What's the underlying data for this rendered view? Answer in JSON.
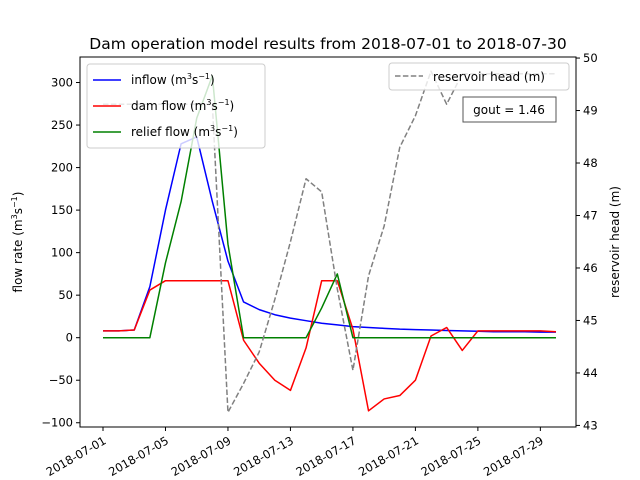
{
  "chart_data": {
    "type": "line",
    "title": "Dam operation model results from 2018-07-01 to 2018-07-30",
    "x": [
      "2018-07-01",
      "2018-07-02",
      "2018-07-03",
      "2018-07-04",
      "2018-07-05",
      "2018-07-06",
      "2018-07-07",
      "2018-07-08",
      "2018-07-09",
      "2018-07-10",
      "2018-07-11",
      "2018-07-12",
      "2018-07-13",
      "2018-07-14",
      "2018-07-15",
      "2018-07-16",
      "2018-07-17",
      "2018-07-18",
      "2018-07-19",
      "2018-07-20",
      "2018-07-21",
      "2018-07-22",
      "2018-07-23",
      "2018-07-24",
      "2018-07-25",
      "2018-07-26",
      "2018-07-27",
      "2018-07-28",
      "2018-07-29",
      "2018-07-30"
    ],
    "x_ticks": [
      "2018-07-01",
      "2018-07-05",
      "2018-07-09",
      "2018-07-13",
      "2018-07-17",
      "2018-07-21",
      "2018-07-25",
      "2018-07-29"
    ],
    "left_axis": {
      "label_main": "flow rate (m",
      "label_sup1": "3",
      "label_mid": "s",
      "label_sup2": "−1",
      "label_end": ")",
      "ylim": [
        -105,
        330
      ],
      "ticks": [
        -100,
        -50,
        0,
        50,
        100,
        150,
        200,
        250,
        300
      ],
      "tick_labels": [
        "−100",
        "−50",
        "0",
        "50",
        "100",
        "150",
        "200",
        "250",
        "300"
      ]
    },
    "right_axis": {
      "label": "reservoir head (m)",
      "ylim": [
        42.97,
        50.02
      ],
      "ticks": [
        43,
        44,
        45,
        46,
        47,
        48,
        49,
        50
      ],
      "tick_labels": [
        "43",
        "44",
        "45",
        "46",
        "47",
        "48",
        "49",
        "50"
      ]
    },
    "series": [
      {
        "name_main": "inflow (m",
        "name_sup1": "3",
        "name_mid": "s",
        "name_sup2": "−1",
        "name_end": ")",
        "axis": "left",
        "color": "#0000ff",
        "style": "solid",
        "values": [
          8,
          8,
          9,
          60,
          150,
          228,
          236,
          160,
          90,
          42,
          33,
          27,
          23,
          20,
          17,
          15,
          13,
          12,
          11,
          10,
          9.5,
          9,
          8.5,
          8,
          7.5,
          7,
          7,
          7,
          6.5,
          6.5
        ]
      },
      {
        "name_main": "dam flow (m",
        "name_sup1": "3",
        "name_mid": "s",
        "name_sup2": "−1",
        "name_end": ")",
        "axis": "left",
        "color": "#ff0000",
        "style": "solid",
        "values": [
          8,
          8,
          9,
          56,
          67,
          67,
          67,
          67,
          67,
          -3,
          -30,
          -50,
          -62,
          -12,
          67,
          67,
          10,
          -86,
          -72,
          -68,
          -50,
          2,
          12,
          -15,
          8,
          8,
          8,
          8,
          8,
          7
        ]
      },
      {
        "name_main": "relief flow (m",
        "name_sup1": "3",
        "name_mid": "s",
        "name_sup2": "−1",
        "name_end": ")",
        "axis": "left",
        "color": "#008000",
        "style": "solid",
        "values": [
          0,
          0,
          0,
          0,
          88,
          160,
          258,
          308,
          110,
          0,
          0,
          0,
          0,
          0,
          35,
          75,
          0,
          0,
          0,
          0,
          0,
          0,
          0,
          0,
          0,
          0,
          0,
          0,
          0,
          0
        ]
      },
      {
        "name": "reservoir head (m)",
        "axis": "right",
        "color": "#808080",
        "style": "dashed",
        "values": [
          49.12,
          49.12,
          49.12,
          49.12,
          49.12,
          49.12,
          49.12,
          49.12,
          43.25,
          43.8,
          44.4,
          45.4,
          46.5,
          47.7,
          47.45,
          45.6,
          44.05,
          45.85,
          46.8,
          48.3,
          48.9,
          49.75,
          49.12,
          49.7,
          49.7,
          49.7,
          49.7,
          49.7,
          49.7,
          49.7
        ]
      }
    ],
    "annotation": "gout = 1.46",
    "legend_left_position": "upper left",
    "legend_right_position": "upper right",
    "grid": false,
    "x_tick_rotation_deg": 30
  }
}
